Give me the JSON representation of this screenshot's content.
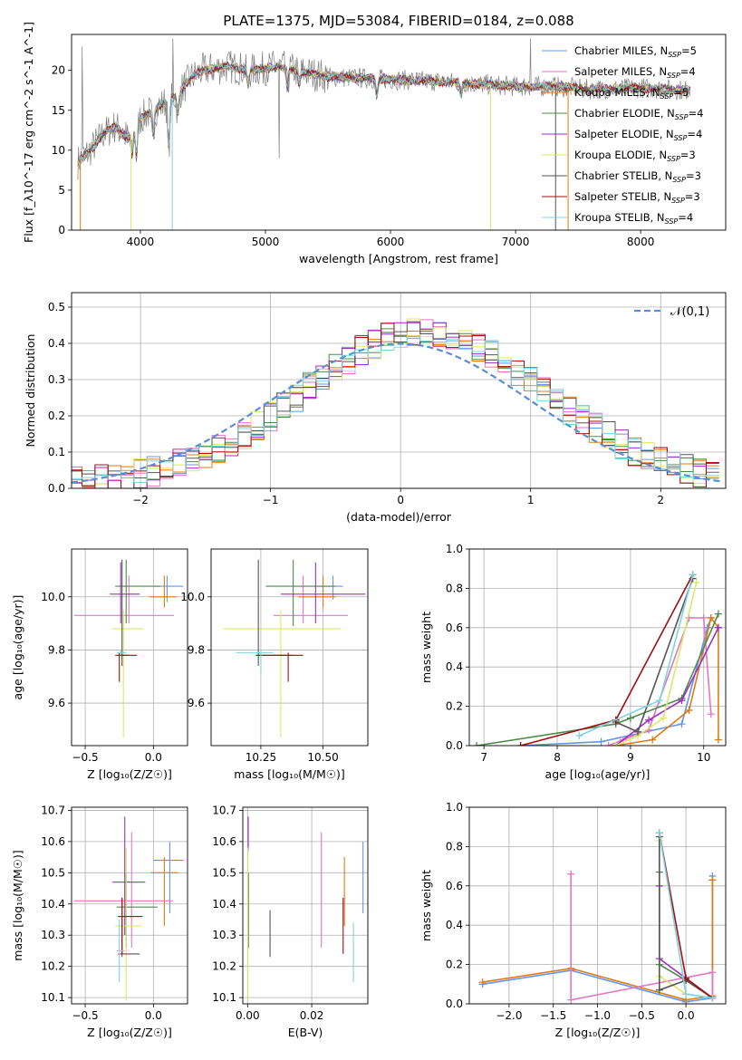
{
  "colors": {
    "c_miles": "#6495ed",
    "s_miles": "#e377c2",
    "k_miles": "#e07b14",
    "c_elodie": "#4e8a4e",
    "s_elodie": "#9b30c0",
    "k_elodie": "#dbe86a",
    "c_stelib": "#555555",
    "s_stelib": "#a01010",
    "k_stelib": "#7fd3dc",
    "data": "#808080",
    "normal": "#5b8dd6"
  },
  "chart_data": [
    {
      "id": "spectrum",
      "type": "line",
      "title": "PLATE=1375, MJD=53084, FIBERID=0184, z=0.088",
      "xlabel": "wavelength [Angstrom, rest frame]",
      "ylabel": "Flux [f_λ10^-17 erg cm^-2 s^-1 A^-1]",
      "xlim": [
        3450,
        8680
      ],
      "ylim": [
        0,
        24.5
      ],
      "xticks": [
        4000,
        5000,
        6000,
        7000,
        8000
      ],
      "yticks": [
        0,
        5,
        10,
        15,
        20
      ],
      "legend_position": "top-right",
      "legend": [
        {
          "label": "Chabrier MILES, N",
          "sub": "SSP",
          "suffix": "=5",
          "color": "c_miles"
        },
        {
          "label": "Salpeter MILES, N",
          "sub": "SSP",
          "suffix": "=4",
          "color": "s_miles"
        },
        {
          "label": "Kroupa MILES, N",
          "sub": "SSP",
          "suffix": "=5",
          "color": "k_miles"
        },
        {
          "label": "Chabrier ELODIE, N",
          "sub": "SSP",
          "suffix": "=4",
          "color": "c_elodie"
        },
        {
          "label": "Salpeter ELODIE, N",
          "sub": "SSP",
          "suffix": "=4",
          "color": "s_elodie"
        },
        {
          "label": "Kroupa ELODIE, N",
          "sub": "SSP",
          "suffix": "=3",
          "color": "k_elodie"
        },
        {
          "label": "Chabrier STELIB, N",
          "sub": "SSP",
          "suffix": "=3",
          "color": "c_stelib"
        },
        {
          "label": "Salpeter STELIB, N",
          "sub": "SSP",
          "suffix": "=3",
          "color": "s_stelib"
        },
        {
          "label": "Kroupa STELIB, N",
          "sub": "SSP",
          "suffix": "=4",
          "color": "k_stelib"
        }
      ],
      "continuum_nodes": [
        [
          3500,
          8.5
        ],
        [
          3600,
          10
        ],
        [
          3700,
          12
        ],
        [
          3800,
          13
        ],
        [
          3900,
          11.5
        ],
        [
          4000,
          14
        ],
        [
          4100,
          15
        ],
        [
          4200,
          16
        ],
        [
          4300,
          17
        ],
        [
          4400,
          19
        ],
        [
          4500,
          20
        ],
        [
          4700,
          20.5
        ],
        [
          4900,
          20
        ],
        [
          5100,
          20.5
        ],
        [
          5300,
          19.8
        ],
        [
          5500,
          19.2
        ],
        [
          5800,
          19
        ],
        [
          6100,
          18.8
        ],
        [
          6400,
          18.6
        ],
        [
          6700,
          18.3
        ],
        [
          7000,
          18
        ],
        [
          7300,
          18
        ],
        [
          7600,
          17.6
        ],
        [
          8000,
          17.8
        ],
        [
          8400,
          17.5
        ]
      ],
      "absorption_lines": [
        [
          3934,
          3.0
        ],
        [
          3969,
          4.0
        ],
        [
          4102,
          3.0
        ],
        [
          4227,
          6.0
        ],
        [
          4300,
          2.5
        ],
        [
          4861,
          2.0
        ],
        [
          5175,
          2.5
        ],
        [
          5270,
          1.5
        ],
        [
          5890,
          2.2
        ],
        [
          6563,
          1.5
        ]
      ],
      "spikes": [
        [
          3520,
          0
        ],
        [
          3535,
          23
        ],
        [
          3925,
          3
        ],
        [
          3935,
          4.5
        ],
        [
          4255,
          0
        ],
        [
          4260,
          24
        ],
        [
          5110,
          9
        ],
        [
          6800,
          0
        ],
        [
          7120,
          24
        ],
        [
          7320,
          6
        ],
        [
          7420,
          0
        ]
      ]
    },
    {
      "id": "residuals",
      "type": "histogram",
      "xlabel": "(data-model)/error",
      "ylabel": "Normed distribution",
      "xlim": [
        -2.53,
        2.5
      ],
      "ylim": [
        0,
        0.54
      ],
      "xticks": [
        -2,
        -1,
        0,
        1,
        2
      ],
      "yticks": [
        0.0,
        0.1,
        0.2,
        0.3,
        0.4,
        0.5
      ],
      "bin_width": 0.1,
      "legend": [
        {
          "label": "𝒩(0,1)",
          "color": "normal",
          "style": "dashed"
        }
      ],
      "normal_mean": 0,
      "normal_sigma": 1
    },
    {
      "id": "age_vs_Z",
      "type": "errorbar",
      "xlabel": "Z [log₁₀(Z/Z☉)]",
      "ylabel": "age  [log₁₀(age/yr)]",
      "xlim": [
        -0.6,
        0.25
      ],
      "ylim": [
        9.44,
        10.18
      ],
      "xticks": [
        -0.5,
        0.0
      ],
      "yticks": [
        9.6,
        9.8,
        10.0
      ],
      "points": [
        {
          "color": "c_miles",
          "x": 0.1,
          "xlo": 0.0,
          "xhi": 0.22,
          "y": 10.04,
          "ylo": 9.98,
          "yhi": 10.08
        },
        {
          "color": "s_miles",
          "x": -0.18,
          "xlo": -0.58,
          "xhi": 0.15,
          "y": 9.93,
          "ylo": 9.9,
          "yhi": 10.08
        },
        {
          "color": "k_miles",
          "x": 0.08,
          "xlo": -0.03,
          "xhi": 0.17,
          "y": 10.0,
          "ylo": 9.96,
          "yhi": 10.08
        },
        {
          "color": "c_elodie",
          "x": -0.2,
          "xlo": -0.28,
          "xhi": 0.05,
          "y": 10.04,
          "ylo": 9.9,
          "yhi": 10.14
        },
        {
          "color": "s_elodie",
          "x": -0.24,
          "xlo": -0.32,
          "xhi": -0.1,
          "y": 10.01,
          "ylo": 9.9,
          "yhi": 10.13
        },
        {
          "color": "k_elodie",
          "x": -0.22,
          "xlo": -0.3,
          "xhi": -0.07,
          "y": 9.88,
          "ylo": 9.47,
          "yhi": 9.95
        },
        {
          "color": "c_stelib",
          "x": -0.23,
          "xlo": -0.26,
          "xhi": -0.18,
          "y": 9.78,
          "ylo": 9.74,
          "yhi": 10.14
        },
        {
          "color": "s_stelib",
          "x": -0.25,
          "xlo": -0.28,
          "xhi": -0.12,
          "y": 9.78,
          "ylo": 9.68,
          "yhi": 9.79
        },
        {
          "color": "k_stelib",
          "x": -0.24,
          "xlo": -0.27,
          "xhi": -0.2,
          "y": 9.79,
          "ylo": 9.78,
          "yhi": 9.8
        }
      ]
    },
    {
      "id": "age_vs_mass",
      "type": "errorbar",
      "xlabel": "mass [log₁₀(M/M☉)]",
      "ylabel": "",
      "xlim": [
        10.05,
        10.68
      ],
      "ylim": [
        9.44,
        10.18
      ],
      "xticks": [
        10.25,
        10.5
      ],
      "yticks": [
        9.6,
        9.8,
        10.0
      ],
      "points": [
        {
          "color": "c_miles",
          "x": 10.54,
          "xlo": 10.48,
          "xhi": 10.58,
          "y": 10.04,
          "ylo": 9.99,
          "yhi": 10.08
        },
        {
          "color": "s_miles",
          "x": 10.42,
          "xlo": 10.3,
          "xhi": 10.6,
          "y": 9.93,
          "ylo": 9.9,
          "yhi": 10.08
        },
        {
          "color": "k_miles",
          "x": 10.5,
          "xlo": 10.4,
          "xhi": 10.55,
          "y": 10.0,
          "ylo": 9.96,
          "yhi": 10.08
        },
        {
          "color": "c_elodie",
          "x": 10.38,
          "xlo": 10.27,
          "xhi": 10.55,
          "y": 10.04,
          "ylo": 9.89,
          "yhi": 10.14
        },
        {
          "color": "s_elodie",
          "x": 10.47,
          "xlo": 10.33,
          "xhi": 10.67,
          "y": 10.01,
          "ylo": 9.9,
          "yhi": 10.13
        },
        {
          "color": "k_elodie",
          "x": 10.33,
          "xlo": 10.1,
          "xhi": 10.57,
          "y": 9.88,
          "ylo": 9.47,
          "yhi": 9.95
        },
        {
          "color": "c_stelib",
          "x": 10.24,
          "xlo": 10.23,
          "xhi": 10.38,
          "y": 9.78,
          "ylo": 9.74,
          "yhi": 10.14
        },
        {
          "color": "s_stelib",
          "x": 10.36,
          "xlo": 10.23,
          "xhi": 10.42,
          "y": 9.78,
          "ylo": 9.68,
          "yhi": 9.79
        },
        {
          "color": "k_stelib",
          "x": 10.25,
          "xlo": 10.15,
          "xhi": 10.3,
          "y": 9.79,
          "ylo": 9.71,
          "yhi": 9.8
        }
      ]
    },
    {
      "id": "mass_weight_vs_age",
      "type": "line",
      "xlabel": "age  [log₁₀(age/yr)]",
      "ylabel": "mass weight",
      "xlim": [
        6.8,
        10.3
      ],
      "ylim": [
        0,
        1.0
      ],
      "xticks": [
        7,
        8,
        9,
        10
      ],
      "yticks": [
        0.0,
        0.2,
        0.4,
        0.6,
        0.8,
        1.0
      ],
      "series": [
        {
          "color": "c_miles",
          "x": [
            7.5,
            8.6,
            9.7,
            10.05,
            10.1
          ],
          "y": [
            0.0,
            0.02,
            0.11,
            0.6,
            0.65
          ]
        },
        {
          "color": "s_miles",
          "x": [
            8.7,
            8.9,
            9.25,
            9.8,
            10.0,
            10.1
          ],
          "y": [
            0.0,
            0.03,
            0.08,
            0.65,
            0.65,
            0.16
          ]
        },
        {
          "color": "k_miles",
          "x": [
            8.8,
            9.3,
            9.8,
            10.1,
            10.2,
            10.2
          ],
          "y": [
            0.0,
            0.03,
            0.18,
            0.65,
            0.6,
            0.03
          ]
        },
        {
          "color": "c_elodie",
          "x": [
            6.9,
            8.8,
            9.0,
            9.7,
            10.2
          ],
          "y": [
            0.0,
            0.11,
            0.14,
            0.24,
            0.67
          ]
        },
        {
          "color": "s_elodie",
          "x": [
            8.8,
            9.25,
            9.7,
            10.2
          ],
          "y": [
            0.0,
            0.13,
            0.23,
            0.6
          ]
        },
        {
          "color": "k_elodie",
          "x": [
            8.8,
            9.1,
            9.45,
            9.9
          ],
          "y": [
            0.0,
            0.05,
            0.14,
            0.83
          ]
        },
        {
          "color": "c_stelib",
          "x": [
            8.8,
            9.1,
            9.85
          ],
          "y": [
            0.12,
            0.07,
            0.85
          ]
        },
        {
          "color": "s_stelib",
          "x": [
            7.5,
            8.8,
            9.85
          ],
          "y": [
            0.0,
            0.13,
            0.87
          ]
        },
        {
          "color": "k_stelib",
          "x": [
            8.3,
            9.4,
            9.85
          ],
          "y": [
            0.05,
            0.23,
            0.87
          ]
        }
      ]
    },
    {
      "id": "mass_vs_Z",
      "type": "errorbar",
      "xlabel": "Z [log₁₀(Z/Z☉)]",
      "ylabel": "mass [log₁₀(M/M☉)]",
      "xlim": [
        -0.6,
        0.25
      ],
      "ylim": [
        10.08,
        10.71
      ],
      "xticks": [
        -0.5,
        0.0
      ],
      "yticks": [
        10.1,
        10.2,
        10.3,
        10.4,
        10.5,
        10.6,
        10.7
      ],
      "points": [
        {
          "color": "c_miles",
          "x": 0.12,
          "xlo": 0.0,
          "xhi": 0.22,
          "y": 10.54,
          "ylo": 10.37,
          "yhi": 10.6
        },
        {
          "color": "s_miles",
          "x": -0.16,
          "xlo": -0.58,
          "xhi": 0.14,
          "y": 10.41,
          "ylo": 10.26,
          "yhi": 10.63
        },
        {
          "color": "k_miles",
          "x": 0.08,
          "xlo": -0.02,
          "xhi": 0.18,
          "y": 10.5,
          "ylo": 10.33,
          "yhi": 10.55
        },
        {
          "color": "c_elodie",
          "x": -0.2,
          "xlo": -0.27,
          "xhi": 0.03,
          "y": 10.39,
          "ylo": 10.26,
          "yhi": 10.5
        },
        {
          "color": "s_elodie",
          "x": -0.21,
          "xlo": -0.3,
          "xhi": -0.06,
          "y": 10.47,
          "ylo": 10.3,
          "yhi": 10.68
        },
        {
          "color": "k_elodie",
          "x": -0.2,
          "xlo": -0.28,
          "xhi": -0.09,
          "y": 10.33,
          "ylo": 10.09,
          "yhi": 10.58
        },
        {
          "color": "c_stelib",
          "x": -0.23,
          "xlo": -0.26,
          "xhi": -0.1,
          "y": 10.24,
          "ylo": 10.23,
          "yhi": 10.42
        },
        {
          "color": "s_stelib",
          "x": -0.23,
          "xlo": -0.26,
          "xhi": -0.08,
          "y": 10.36,
          "ylo": 10.24,
          "yhi": 10.42
        },
        {
          "color": "k_stelib",
          "x": -0.25,
          "xlo": -0.27,
          "xhi": -0.21,
          "y": 10.25,
          "ylo": 10.15,
          "yhi": 10.35
        }
      ]
    },
    {
      "id": "mass_vs_ebv",
      "type": "errorbar",
      "xlabel": "E(B-V)",
      "ylabel": "",
      "xlim": [
        -0.0015,
        0.0375
      ],
      "ylim": [
        10.08,
        10.71
      ],
      "xticks": [
        0.0,
        0.02
      ],
      "yticks": [
        10.1,
        10.2,
        10.3,
        10.4,
        10.5,
        10.6,
        10.7
      ],
      "points": [
        {
          "color": "c_miles",
          "x": 0.036,
          "ylo": 10.37,
          "yhi": 10.6
        },
        {
          "color": "s_miles",
          "x": 0.023,
          "ylo": 10.26,
          "yhi": 10.63
        },
        {
          "color": "k_miles",
          "x": 0.0302,
          "ylo": 10.33,
          "yhi": 10.55
        },
        {
          "color": "c_elodie",
          "x": 0.0003,
          "ylo": 10.26,
          "yhi": 10.5
        },
        {
          "color": "s_elodie",
          "x": 0.0002,
          "ylo": 10.57,
          "yhi": 10.68
        },
        {
          "color": "k_elodie",
          "x": 0.0001,
          "ylo": 10.09,
          "yhi": 10.58
        },
        {
          "color": "c_stelib",
          "x": 0.007,
          "ylo": 10.23,
          "yhi": 10.38
        },
        {
          "color": "s_stelib",
          "x": 0.0298,
          "ylo": 10.24,
          "yhi": 10.42
        },
        {
          "color": "k_stelib",
          "x": 0.033,
          "ylo": 10.15,
          "yhi": 10.34
        }
      ]
    },
    {
      "id": "mass_weight_vs_Z",
      "type": "line",
      "xlabel": "Z [log₁₀(Z/Z☉)]",
      "ylabel": "mass weight",
      "xlim": [
        -2.45,
        0.45
      ],
      "ylim": [
        0,
        1.0
      ],
      "xticks": [
        -2.0,
        -1.5,
        -1.0,
        -0.5,
        0.0
      ],
      "yticks": [
        0.0,
        0.2,
        0.4,
        0.6,
        0.8,
        1.0
      ],
      "series": [
        {
          "color": "c_miles",
          "x": [
            -2.3,
            -1.3,
            0.0,
            0.3,
            0.3
          ],
          "y": [
            0.1,
            0.17,
            0.01,
            0.03,
            0.65
          ]
        },
        {
          "color": "k_miles",
          "x": [
            -2.3,
            -1.3,
            0.0,
            0.3,
            0.3
          ],
          "y": [
            0.11,
            0.18,
            0.02,
            0.04,
            0.63
          ]
        },
        {
          "color": "s_miles",
          "x": [
            -1.3,
            -1.3,
            0.3,
            0.3
          ],
          "y": [
            0.66,
            0.02,
            0.16,
            0.03
          ]
        },
        {
          "color": "c_elodie",
          "x": [
            -0.3,
            -0.3,
            0.0,
            0.3
          ],
          "y": [
            0.67,
            0.2,
            0.12,
            0.03
          ]
        },
        {
          "color": "s_elodie",
          "x": [
            -0.3,
            -0.3,
            0.0,
            0.3
          ],
          "y": [
            0.6,
            0.23,
            0.13,
            0.03
          ]
        },
        {
          "color": "k_elodie",
          "x": [
            -0.3,
            -0.3,
            0.0,
            0.3
          ],
          "y": [
            0.83,
            0.14,
            0.05,
            0.03
          ]
        },
        {
          "color": "c_stelib",
          "x": [
            -0.3,
            -0.3,
            0.0,
            0.3
          ],
          "y": [
            0.85,
            0.07,
            0.12,
            0.03
          ]
        },
        {
          "color": "s_stelib",
          "x": [
            -0.3,
            0.0,
            0.3
          ],
          "y": [
            0.87,
            0.13,
            0.03
          ]
        },
        {
          "color": "k_stelib",
          "x": [
            -0.3,
            0.0,
            0.3
          ],
          "y": [
            0.87,
            0.05,
            0.03
          ]
        }
      ]
    }
  ]
}
